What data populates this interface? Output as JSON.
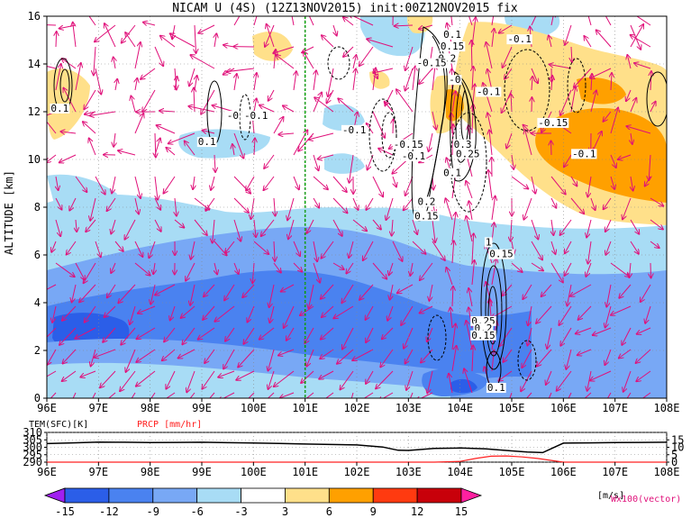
{
  "chart_data": [
    {
      "type": "heatmap",
      "title": "NICAM U (4S) (12Z13NOV2015) init:00Z12NOV2015 fix",
      "xlabel": "",
      "ylabel": "ALTITUDE [km]",
      "xlim": [
        96,
        108
      ],
      "ylim": [
        0,
        16
      ],
      "x_ticks": [
        "96E",
        "97E",
        "98E",
        "99E",
        "100E",
        "101E",
        "102E",
        "103E",
        "104E",
        "105E",
        "106E",
        "107E",
        "108E"
      ],
      "y_ticks": [
        "0",
        "2",
        "4",
        "6",
        "8",
        "10",
        "12",
        "14",
        "16"
      ],
      "reference_line_x": 101,
      "contour_labels": [
        {
          "x": 96.25,
          "y": 12.0,
          "text": "0.1"
        },
        {
          "x": 99.1,
          "y": 10.6,
          "text": "0.1"
        },
        {
          "x": 99.6,
          "y": 11.7,
          "text": "-0"
        },
        {
          "x": 100.05,
          "y": 11.7,
          "text": "-0.1"
        },
        {
          "x": 101.95,
          "y": 11.1,
          "text": "-0.1"
        },
        {
          "x": 103.0,
          "y": 10.5,
          "text": "-0.15"
        },
        {
          "x": 103.1,
          "y": 10.0,
          "text": "-0.1"
        },
        {
          "x": 103.85,
          "y": 15.1,
          "text": "0.1"
        },
        {
          "x": 103.85,
          "y": 14.6,
          "text": "0.15"
        },
        {
          "x": 103.75,
          "y": 14.1,
          "text": "0.2"
        },
        {
          "x": 103.45,
          "y": 13.9,
          "text": "-0.15"
        },
        {
          "x": 103.9,
          "y": 13.2,
          "text": "-0"
        },
        {
          "x": 104.05,
          "y": 10.5,
          "text": "0.3"
        },
        {
          "x": 104.15,
          "y": 10.1,
          "text": "0.25"
        },
        {
          "x": 103.85,
          "y": 9.3,
          "text": "0.1"
        },
        {
          "x": 103.35,
          "y": 8.1,
          "text": "0.2"
        },
        {
          "x": 103.35,
          "y": 7.5,
          "text": "0.15"
        },
        {
          "x": 105.15,
          "y": 14.9,
          "text": "-0.1"
        },
        {
          "x": 104.55,
          "y": 12.7,
          "text": "-0.1"
        },
        {
          "x": 105.8,
          "y": 11.4,
          "text": "-0.15"
        },
        {
          "x": 106.4,
          "y": 10.1,
          "text": "-0.1"
        },
        {
          "x": 104.55,
          "y": 6.4,
          "text": "1"
        },
        {
          "x": 104.8,
          "y": 5.9,
          "text": "0.15"
        },
        {
          "x": 104.45,
          "y": 3.1,
          "text": "0.25"
        },
        {
          "x": 104.45,
          "y": 2.8,
          "text": "0.2"
        },
        {
          "x": 104.45,
          "y": 2.5,
          "text": "0.15"
        },
        {
          "x": 104.7,
          "y": 0.3,
          "text": "0.1"
        }
      ],
      "colorbar": {
        "levels": [
          "-15",
          "-12",
          "-9",
          "-6",
          "-3",
          "3",
          "6",
          "9",
          "12",
          "15"
        ],
        "units": "[m/s]",
        "colors": [
          "#a020f0",
          "#2b5ee8",
          "#4a82f0",
          "#78a8f5",
          "#a8dcf5",
          "#ffffff",
          "#ffe08a",
          "#ffa000",
          "#ff3a10",
          "#c8000a",
          "#ff20a0"
        ]
      },
      "vector_label": "Wx100(vector)",
      "vector_color": "#e0107a"
    },
    {
      "type": "line",
      "xlim": [
        96,
        108
      ],
      "x_ticks": [
        "96E",
        "97E",
        "98E",
        "99E",
        "100E",
        "101E",
        "102E",
        "103E",
        "104E",
        "105E",
        "106E",
        "107E",
        "108E"
      ],
      "left_axis": {
        "label": "TEM(SFC)[K]",
        "ylim": [
          290,
          310
        ],
        "ticks": [
          "290",
          "295",
          "300",
          "305",
          "310"
        ]
      },
      "right_axis": {
        "label": "PRCP [mm/hr]",
        "ylim": [
          0,
          20
        ],
        "ticks": [
          "0",
          "5",
          "10",
          "15"
        ]
      },
      "series": [
        {
          "axis": "left",
          "color": "#000000",
          "x": [
            96,
            96.5,
            97,
            97.5,
            98,
            98.5,
            99,
            99.5,
            100,
            100.5,
            101,
            101.5,
            102,
            102.5,
            102.8,
            103,
            103.2,
            103.5,
            104,
            104.5,
            105,
            105.3,
            105.6,
            106,
            106.5,
            107,
            107.5,
            108
          ],
          "y": [
            302.5,
            303.0,
            303.5,
            303.4,
            303.2,
            303.3,
            303.4,
            303.1,
            302.9,
            302.6,
            302.2,
            301.9,
            301.6,
            300.2,
            298.0,
            297.9,
            298.4,
            299.2,
            299.5,
            298.9,
            297.6,
            296.8,
            296.4,
            302.8,
            303.0,
            303.2,
            303.3,
            303.4
          ]
        },
        {
          "axis": "right",
          "color": "#ff2020",
          "x": [
            96,
            103.5,
            104,
            104.3,
            104.6,
            104.9,
            105.2,
            105.5,
            105.8,
            106,
            108
          ],
          "y": [
            0,
            0,
            0.5,
            2.5,
            4.0,
            4.2,
            3.5,
            2.5,
            1.0,
            0,
            0
          ]
        }
      ]
    }
  ]
}
